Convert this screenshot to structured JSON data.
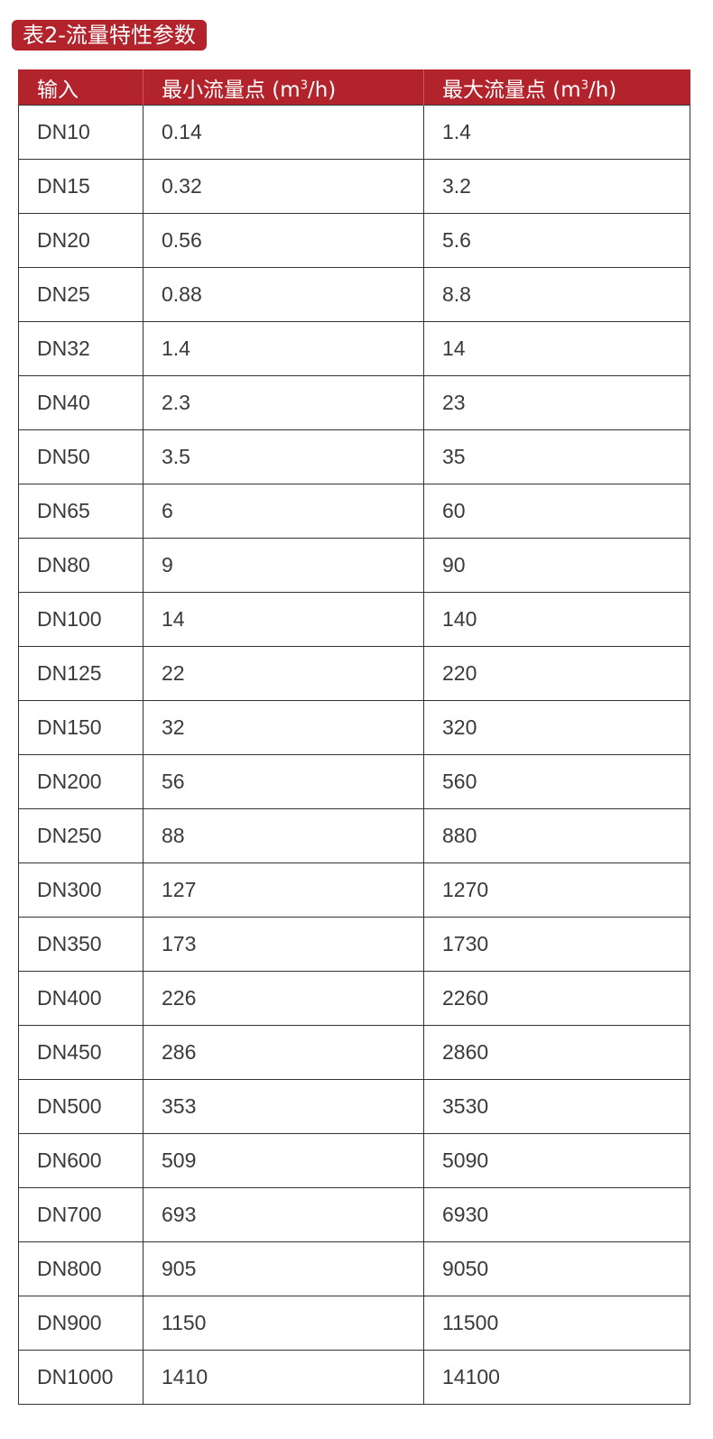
{
  "title": "表2-流量特性参数",
  "table": {
    "headers": [
      {
        "text": "输入",
        "unit": ""
      },
      {
        "text": "最小流量点 (m",
        "sup": "3",
        "tail": "/h)"
      },
      {
        "text": "最大流量点 (m",
        "sup": "3",
        "tail": "/h)"
      }
    ],
    "rows": [
      [
        "DN10",
        "0.14",
        "1.4"
      ],
      [
        "DN15",
        "0.32",
        "3.2"
      ],
      [
        "DN20",
        "0.56",
        "5.6"
      ],
      [
        "DN25",
        "0.88",
        "8.8"
      ],
      [
        "DN32",
        "1.4",
        "14"
      ],
      [
        "DN40",
        "2.3",
        "23"
      ],
      [
        "DN50",
        "3.5",
        "35"
      ],
      [
        "DN65",
        "6",
        "60"
      ],
      [
        "DN80",
        "9",
        "90"
      ],
      [
        "DN100",
        "14",
        "140"
      ],
      [
        "DN125",
        "22",
        "220"
      ],
      [
        "DN150",
        "32",
        "320"
      ],
      [
        "DN200",
        "56",
        "560"
      ],
      [
        "DN250",
        "88",
        "880"
      ],
      [
        "DN300",
        "127",
        "1270"
      ],
      [
        "DN350",
        "173",
        "1730"
      ],
      [
        "DN400",
        "226",
        "2260"
      ],
      [
        "DN450",
        "286",
        "2860"
      ],
      [
        "DN500",
        "353",
        "3530"
      ],
      [
        "DN600",
        "509",
        "5090"
      ],
      [
        "DN700",
        "693",
        "6930"
      ],
      [
        "DN800",
        "905",
        "9050"
      ],
      [
        "DN900",
        "1150",
        "11500"
      ],
      [
        "DN1000",
        "1410",
        "14100"
      ]
    ]
  },
  "colors": {
    "accent": "#b3232b",
    "border": "#333333"
  }
}
